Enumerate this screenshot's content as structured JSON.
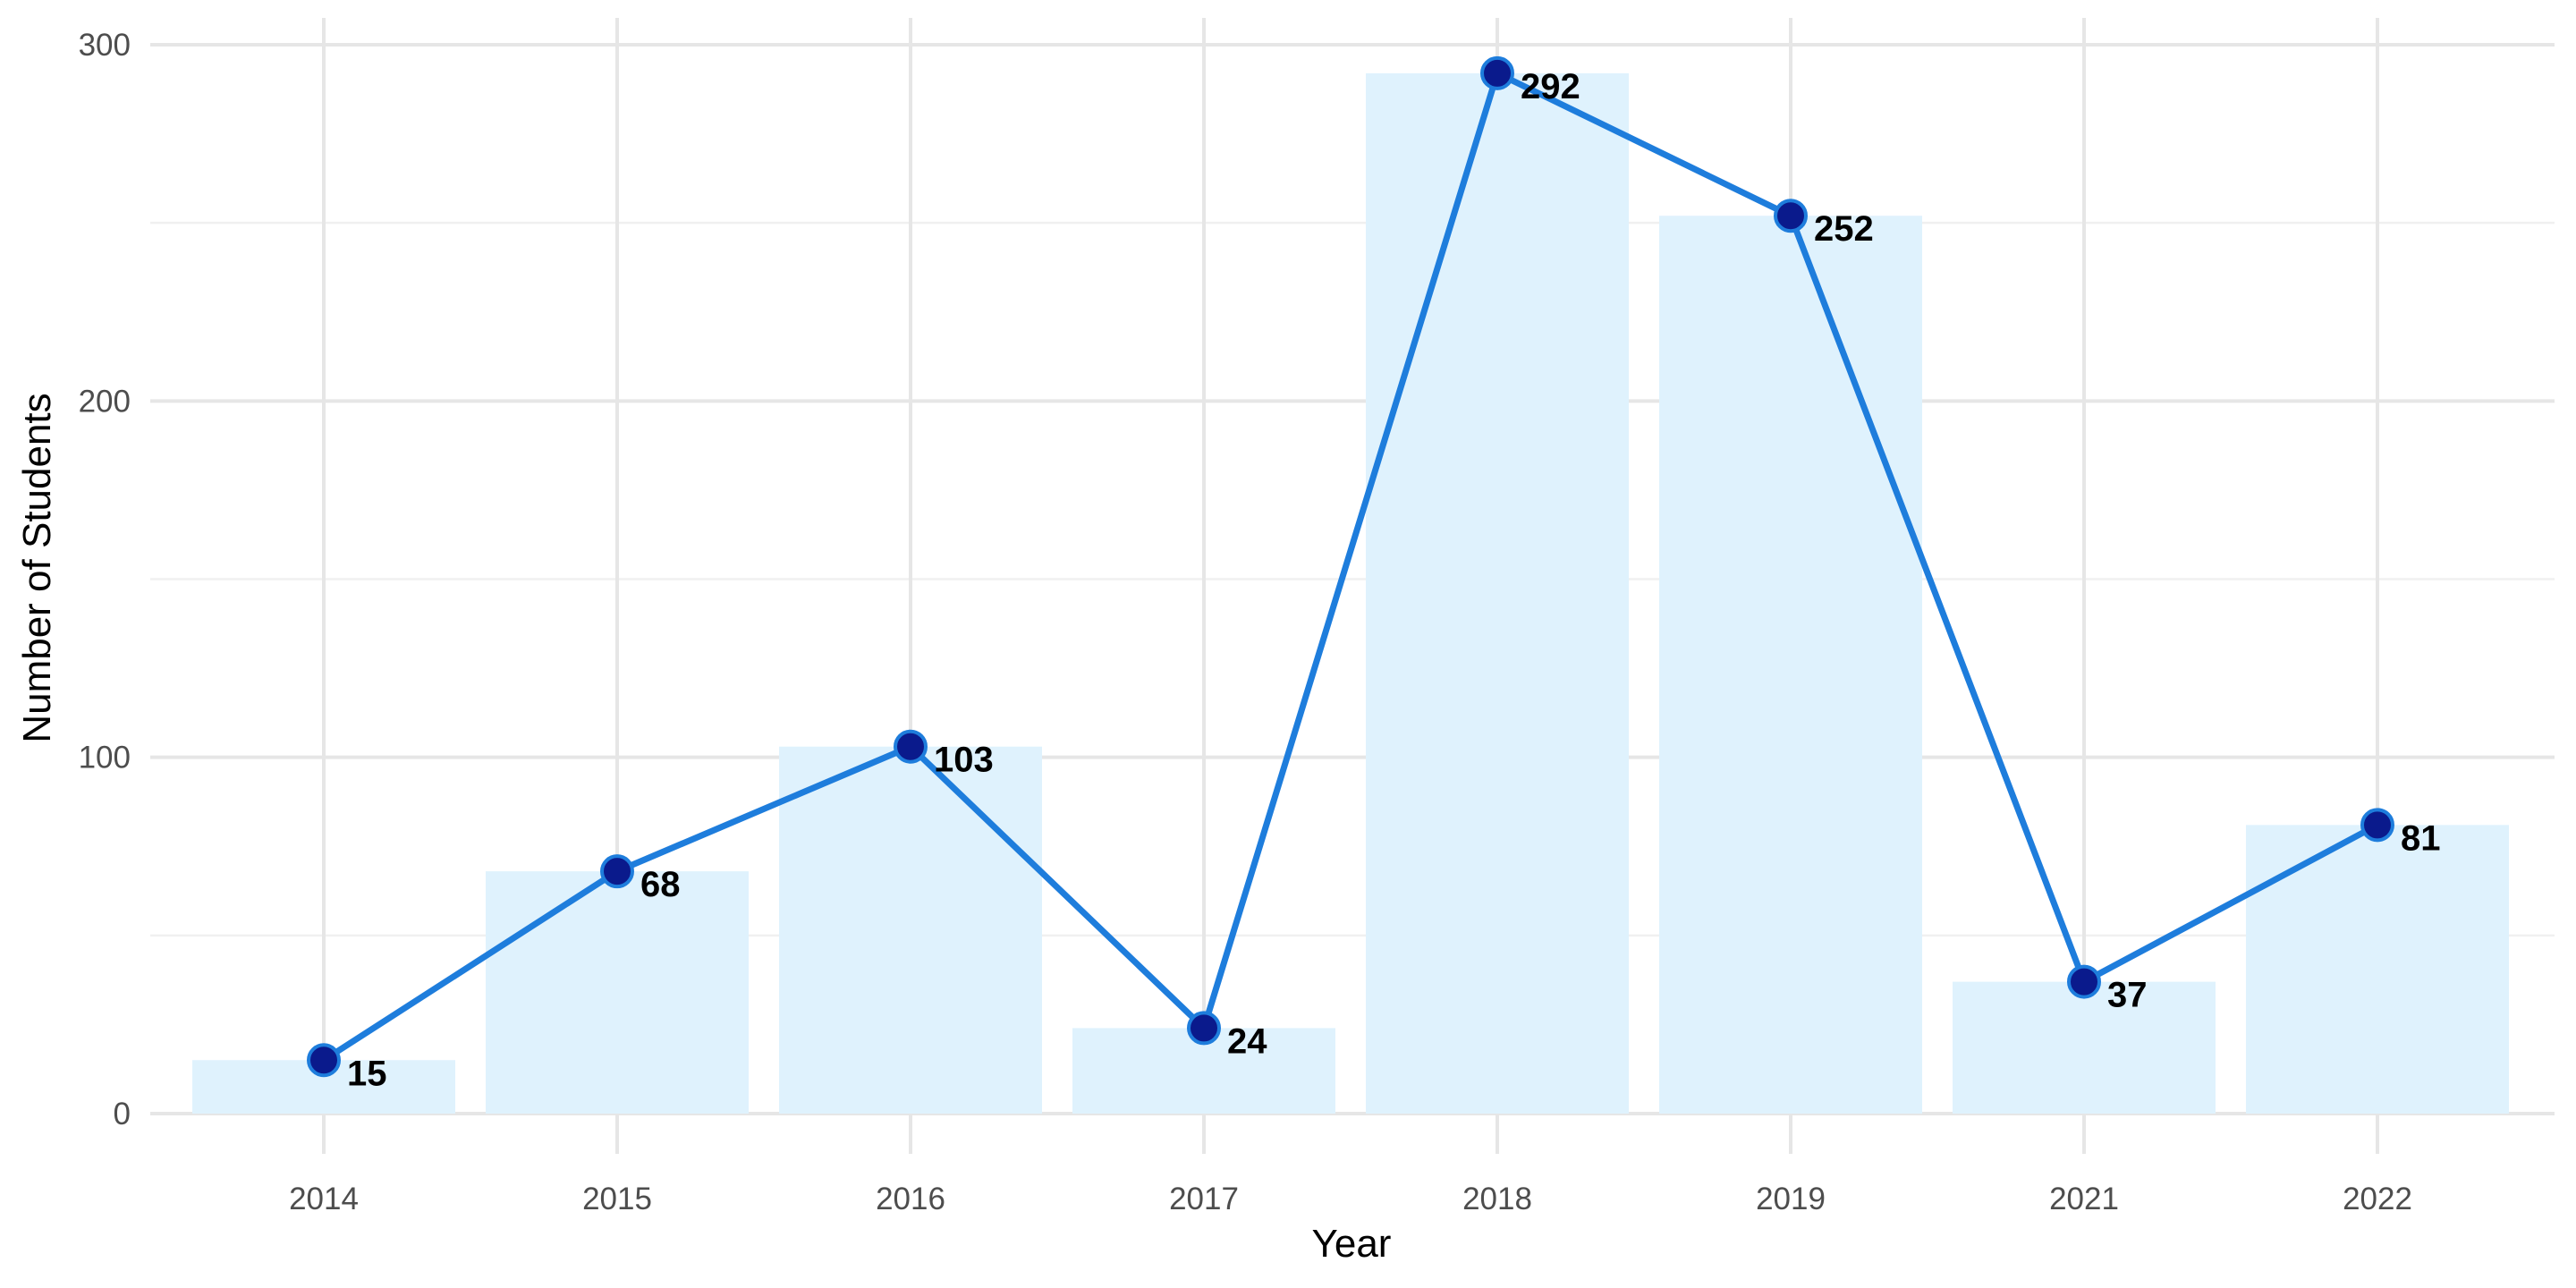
{
  "chart_data": {
    "type": "bar",
    "overlay": "line",
    "title": "",
    "xlabel": "Year",
    "ylabel": "Number of Students",
    "categories": [
      "2014",
      "2015",
      "2016",
      "2017",
      "2018",
      "2019",
      "2021",
      "2022"
    ],
    "values": [
      15,
      68,
      103,
      24,
      292,
      252,
      37,
      81
    ],
    "ylim": [
      0,
      300
    ],
    "yticks": [
      0,
      100,
      200,
      300
    ],
    "grid": true,
    "legend": "none",
    "colors": {
      "bar": "#dff2fd",
      "line": "#1e7ddc",
      "point_fill": "#0a1a8c",
      "point_stroke": "#1e7ddc",
      "grid": "#e6e6e6"
    }
  }
}
